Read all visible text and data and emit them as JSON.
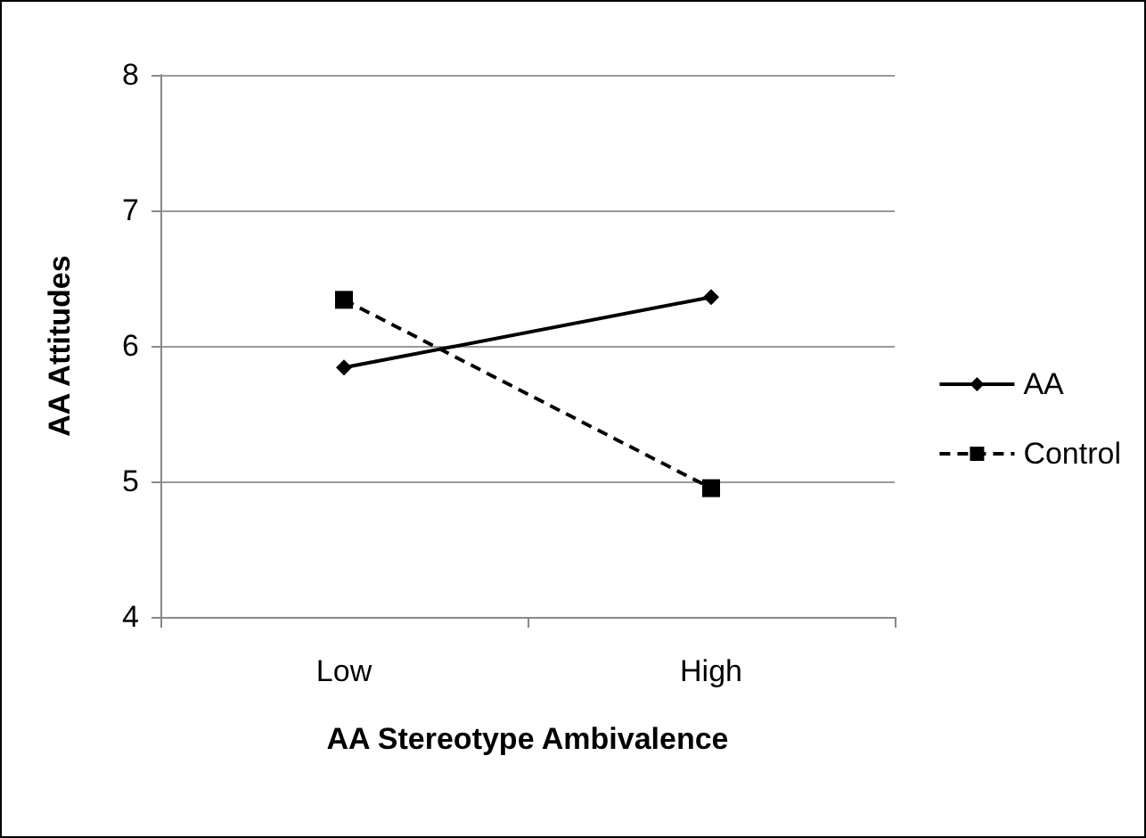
{
  "chart_data": {
    "type": "line",
    "xlabel": "AA Stereotype Ambivalence",
    "ylabel": "AA Attitudes",
    "categories": [
      "Low",
      "High"
    ],
    "series": [
      {
        "name": "AA",
        "color": "#000000",
        "values": [
          5.84,
          6.36
        ],
        "marker": "diamond",
        "line_style": "solid"
      },
      {
        "name": "Control",
        "color": "#000000",
        "values": [
          6.34,
          4.95
        ],
        "marker": "square",
        "line_style": "dashed"
      }
    ],
    "ylim": [
      4,
      8
    ],
    "yticks": [
      4,
      5,
      6,
      7,
      8
    ],
    "grid": "y",
    "legend": "right"
  }
}
